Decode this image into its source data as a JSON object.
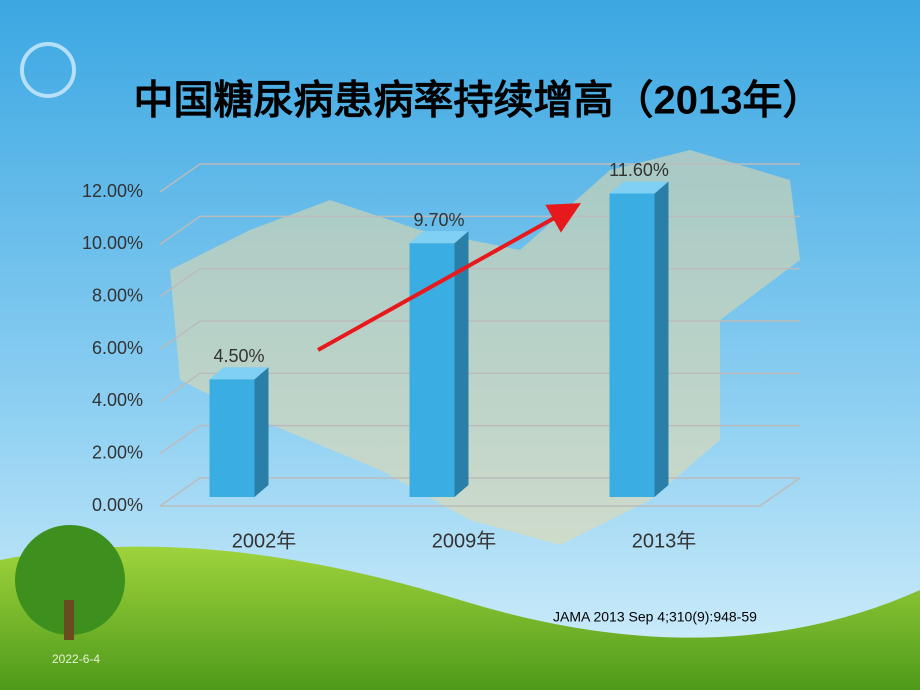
{
  "chart_data": {
    "type": "bar3d",
    "title": "中国糖尿病患病率持续增高（2013年）",
    "categories": [
      "2002年",
      "2009年",
      "2013年"
    ],
    "values": [
      4.5,
      9.7,
      11.6
    ],
    "value_labels": [
      "4.50%",
      "9.70%",
      "11.60%"
    ],
    "color": "#3aaee3",
    "ylim": [
      0,
      12
    ],
    "yticks": [
      {
        "value": 0,
        "label": "0.00%"
      },
      {
        "value": 2,
        "label": "2.00%"
      },
      {
        "value": 4,
        "label": "4.00%"
      },
      {
        "value": 6,
        "label": "6.00%"
      },
      {
        "value": 8,
        "label": "8.00%"
      },
      {
        "value": 10,
        "label": "10.00%"
      },
      {
        "value": 12,
        "label": "12.00%"
      }
    ],
    "grid": true
  },
  "footer": {
    "source": "JAMA 2013 Sep 4;310(9):948-59",
    "date": "2022-6-4"
  }
}
